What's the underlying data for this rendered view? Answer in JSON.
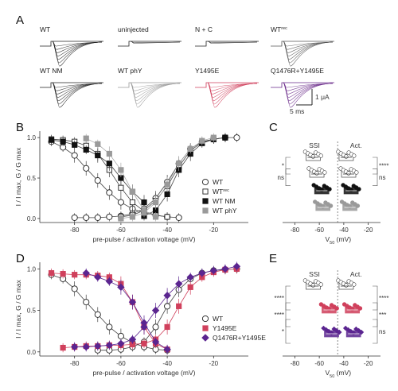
{
  "panels": {
    "A": "A",
    "B": "B",
    "C": "C",
    "D": "D",
    "E": "E"
  },
  "traces": {
    "conditions": [
      {
        "label": "WT",
        "color": "#222222"
      },
      {
        "label": "uninjected",
        "color": "#222222"
      },
      {
        "label": "N + C",
        "color": "#222222"
      },
      {
        "label": "WT",
        "sup": "rec",
        "color": "#555555"
      },
      {
        "label": "WT NM",
        "color": "#222222"
      },
      {
        "label": "WT phY",
        "color": "#9a9a9a"
      },
      {
        "label": "Y1495E",
        "color": "#d0405c"
      },
      {
        "label": "Q1476R+Y1495E",
        "color": "#6a2a8a"
      }
    ],
    "scale_y": "1 μA",
    "scale_x": "5 ms"
  },
  "colors": {
    "wt": "#ffffff",
    "nm": "#111111",
    "phy": "#9a9a9a",
    "y1495e": "#d0405c",
    "q1476r": "#5b2590",
    "wtrec": "#ffffff"
  },
  "chart_data": [
    {
      "id": "B",
      "type": "scatter",
      "xlabel": "pre-pulse / activation voltage (mV)",
      "ylabel": "I / I max, G / G max",
      "xlim": [
        -95,
        -5
      ],
      "ylim": [
        -0.05,
        1.08
      ],
      "xticks": [
        -80,
        -60,
        -40,
        -20
      ],
      "yticks": [
        0.0,
        0.5,
        1.0
      ],
      "yticklabels": [
        "0.0",
        "0.5",
        "1.0"
      ],
      "legend_position": "right-middle",
      "series": [
        {
          "name": "WT",
          "marker": "circle-open",
          "kind": "ssi",
          "x": [
            -90,
            -85,
            -80,
            -75,
            -70,
            -65,
            -60,
            -55,
            -50,
            -45,
            -40,
            -35
          ],
          "y": [
            0.95,
            0.88,
            0.78,
            0.62,
            0.47,
            0.32,
            0.2,
            0.12,
            0.07,
            0.04,
            0.02,
            0.01
          ]
        },
        {
          "name": "WT",
          "marker": "circle-open",
          "kind": "act",
          "x": [
            -80,
            -75,
            -70,
            -65,
            -60,
            -55,
            -50,
            -45,
            -40,
            -35,
            -30,
            -25,
            -20,
            -15,
            -10
          ],
          "y": [
            0.01,
            0.01,
            0.01,
            0.02,
            0.03,
            0.06,
            0.12,
            0.25,
            0.45,
            0.68,
            0.86,
            0.95,
            0.98,
            1.0,
            1.0
          ]
        },
        {
          "name": "WT rec",
          "marker": "square-open",
          "kind": "ssi",
          "x": [
            -90,
            -85,
            -80,
            -75,
            -70,
            -65,
            -60,
            -55,
            -50,
            -45,
            -40
          ],
          "y": [
            0.98,
            0.97,
            0.95,
            0.9,
            0.8,
            0.6,
            0.38,
            0.2,
            0.09,
            0.04,
            0.02
          ]
        },
        {
          "name": "WT rec",
          "marker": "square-open",
          "kind": "act",
          "x": [
            -60,
            -55,
            -50,
            -45,
            -40,
            -35,
            -30,
            -25,
            -20,
            -15
          ],
          "y": [
            0.02,
            0.04,
            0.1,
            0.22,
            0.4,
            0.64,
            0.84,
            0.94,
            0.98,
            1.0
          ]
        },
        {
          "name": "WT NM",
          "marker": "square-filled",
          "kind": "ssi",
          "x": [
            -90,
            -85,
            -80,
            -75,
            -70,
            -65,
            -60,
            -55,
            -50
          ],
          "y": [
            0.97,
            0.95,
            0.91,
            0.85,
            0.78,
            0.68,
            0.5,
            0.33,
            0.2
          ]
        },
        {
          "name": "WT NM",
          "marker": "square-filled",
          "kind": "act",
          "x": [
            -50,
            -45,
            -40,
            -35,
            -30,
            -25,
            -20,
            -15
          ],
          "y": [
            0.03,
            0.1,
            0.3,
            0.6,
            0.8,
            0.93,
            0.98,
            1.0
          ]
        },
        {
          "name": "WT phY",
          "marker": "square-gray",
          "kind": "ssi",
          "x": [
            -75,
            -70,
            -65,
            -60,
            -55,
            -50,
            -45
          ],
          "y": [
            0.99,
            0.92,
            0.8,
            0.6,
            0.33,
            0.1,
            0.02
          ]
        },
        {
          "name": "WT phY",
          "marker": "square-gray",
          "kind": "act",
          "x": [
            -60,
            -55,
            -50,
            -45,
            -40,
            -35,
            -30,
            -25,
            -20
          ],
          "y": [
            0.0,
            0.02,
            0.07,
            0.2,
            0.42,
            0.68,
            0.86,
            0.96,
            1.0
          ]
        }
      ]
    },
    {
      "id": "C",
      "type": "scatter",
      "xlabel": "V50 (mV)",
      "xlim": [
        -90,
        -10
      ],
      "xticks": [
        -80,
        -60,
        -40,
        -20
      ],
      "groups": [
        "SSI",
        "Act."
      ],
      "significance": [
        "*",
        "****",
        "ns",
        "ns"
      ],
      "rows": [
        {
          "name": "WT",
          "ssi_mean": -65,
          "act_mean": -38
        },
        {
          "name": "WT rec",
          "ssi_mean": -62,
          "act_mean": -36
        },
        {
          "name": "WT NM",
          "ssi_mean": -58,
          "act_mean": -34
        },
        {
          "name": "WT phY",
          "ssi_mean": -57,
          "act_mean": -35
        }
      ]
    },
    {
      "id": "D",
      "type": "scatter",
      "xlabel": "pre-pulse / activation voltage (mV)",
      "ylabel": "I / I max, G / G max",
      "xlim": [
        -95,
        -5
      ],
      "ylim": [
        -0.05,
        1.08
      ],
      "xticks": [
        -80,
        -60,
        -40,
        -20
      ],
      "yticks": [
        0.0,
        0.5,
        1.0
      ],
      "yticklabels": [
        "0.0",
        "0.5",
        "1.0"
      ],
      "legend_position": "bottom-right",
      "series": [
        {
          "name": "WT",
          "marker": "circle-open",
          "kind": "ssi",
          "x": [
            -90,
            -85,
            -80,
            -75,
            -70,
            -65,
            -60,
            -55,
            -50,
            -45,
            -40
          ],
          "y": [
            0.93,
            0.88,
            0.76,
            0.6,
            0.45,
            0.3,
            0.19,
            0.11,
            0.06,
            0.03,
            0.02
          ]
        },
        {
          "name": "WT",
          "marker": "circle-open",
          "kind": "act",
          "x": [
            -70,
            -65,
            -60,
            -55,
            -50,
            -45,
            -40,
            -35,
            -30,
            -25,
            -20,
            -15,
            -10
          ],
          "y": [
            0.02,
            0.02,
            0.03,
            0.06,
            0.12,
            0.3,
            0.55,
            0.75,
            0.88,
            0.95,
            0.98,
            0.99,
            1.0
          ]
        },
        {
          "name": "Y1495E",
          "marker": "square-red",
          "kind": "ssi",
          "x": [
            -90,
            -85,
            -80,
            -75,
            -70,
            -65,
            -60,
            -55,
            -50,
            -45,
            -40
          ],
          "y": [
            0.95,
            0.94,
            0.93,
            0.93,
            0.92,
            0.9,
            0.82,
            0.6,
            0.3,
            0.1,
            0.03
          ]
        },
        {
          "name": "Y1495E",
          "marker": "square-red",
          "kind": "act",
          "x": [
            -85,
            -80,
            -75,
            -70,
            -65,
            -60,
            -55,
            -50,
            -45,
            -40,
            -35,
            -30,
            -25,
            -20,
            -15,
            -10
          ],
          "y": [
            0.05,
            0.06,
            0.07,
            0.07,
            0.08,
            0.08,
            0.09,
            0.1,
            0.15,
            0.3,
            0.55,
            0.78,
            0.9,
            0.96,
            0.99,
            1.0
          ]
        },
        {
          "name": "Q1476R+Y1495E",
          "marker": "diamond-purple",
          "kind": "ssi",
          "x": [
            -75,
            -70,
            -65,
            -60,
            -55,
            -50,
            -45,
            -40
          ],
          "y": [
            0.95,
            0.9,
            0.85,
            0.78,
            0.6,
            0.35,
            0.12,
            0.03
          ]
        },
        {
          "name": "Q1476R+Y1495E",
          "marker": "diamond-purple",
          "kind": "act",
          "x": [
            -80,
            -75,
            -70,
            -65,
            -60,
            -55,
            -50,
            -45,
            -40,
            -35,
            -30,
            -25,
            -20,
            -15,
            -10
          ],
          "y": [
            0.06,
            0.06,
            0.07,
            0.08,
            0.1,
            0.15,
            0.3,
            0.5,
            0.68,
            0.82,
            0.9,
            0.95,
            0.98,
            1.0,
            1.03
          ]
        }
      ]
    },
    {
      "id": "E",
      "type": "scatter",
      "xlabel": "V50 (mV)",
      "xlim": [
        -90,
        -10
      ],
      "xticks": [
        -80,
        -60,
        -40,
        -20
      ],
      "groups": [
        "SSI",
        "Act."
      ],
      "significance": [
        "****",
        "****",
        "****",
        "***",
        "*",
        "ns"
      ],
      "rows": [
        {
          "name": "WT",
          "ssi_mean": -65,
          "act_mean": -38
        },
        {
          "name": "Y1495E",
          "ssi_mean": -52,
          "act_mean": -33
        },
        {
          "name": "Q1476R+Y1495E",
          "ssi_mean": -50,
          "act_mean": -32
        }
      ]
    }
  ]
}
